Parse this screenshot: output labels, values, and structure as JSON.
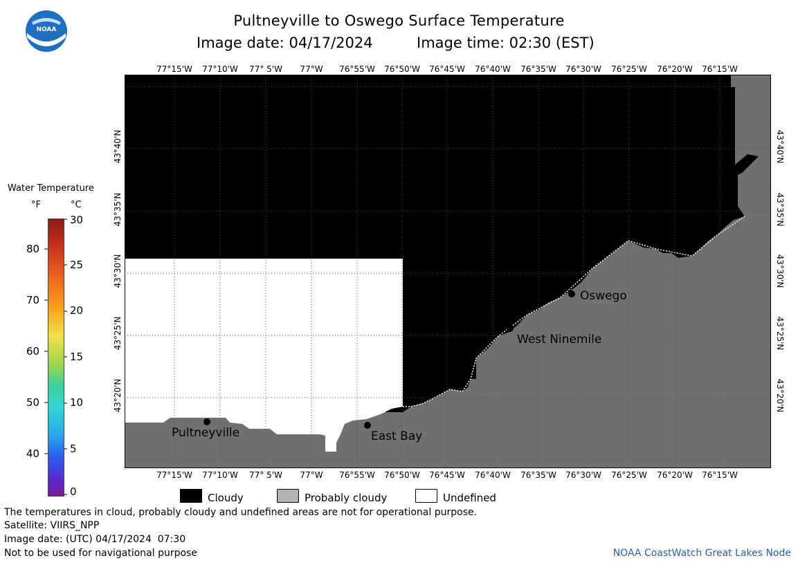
{
  "header": {
    "title": "Pultneyville to Oswego Surface Temperature",
    "date_label": "Image date: 04/17/2024",
    "time_label": "Image time: 02:30 (EST)"
  },
  "logo": {
    "text": "NOAA"
  },
  "map": {
    "lon_labels": [
      "77°15'W",
      "77°10'W",
      "77° 5'W",
      "77°W",
      "76°55'W",
      "76°50'W",
      "76°45'W",
      "76°40'W",
      "76°35'W",
      "76°30'W",
      "76°25'W",
      "76°20'W",
      "76°15'W"
    ],
    "lat_labels": [
      "43°40'N",
      "43°35'N",
      "43°30'N",
      "43°25'N",
      "43°20'N"
    ],
    "cities": [
      {
        "name": "Pultneyville"
      },
      {
        "name": "East Bay"
      },
      {
        "name": "West Ninemile"
      },
      {
        "name": "Oswego"
      }
    ],
    "colors": {
      "cloudy": "#000000",
      "probably_cloudy": "#707070",
      "undefined": "#ffffff"
    }
  },
  "scale": {
    "title": "Water Temperature",
    "unit_f": "°F",
    "unit_c": "°C",
    "f_ticks": [
      "80",
      "70",
      "60",
      "50",
      "40"
    ],
    "c_ticks": [
      "30",
      "25",
      "20",
      "15",
      "10",
      "5",
      "0"
    ]
  },
  "key": {
    "cloudy": "Cloudy",
    "probably_cloudy": "Probably cloudy",
    "undefined": "Undefined"
  },
  "footer": {
    "disclaimer": "The temperatures in cloud, probably cloudy and undefined areas are not for operational purpose.",
    "satellite": "Satellite: VIIRS_NPP",
    "utc_date": "Image date: (UTC) 04/17/2024  07:30",
    "nav_warning": "Not to be used for navigational purpose",
    "credit": "NOAA CoastWatch Great Lakes Node"
  }
}
